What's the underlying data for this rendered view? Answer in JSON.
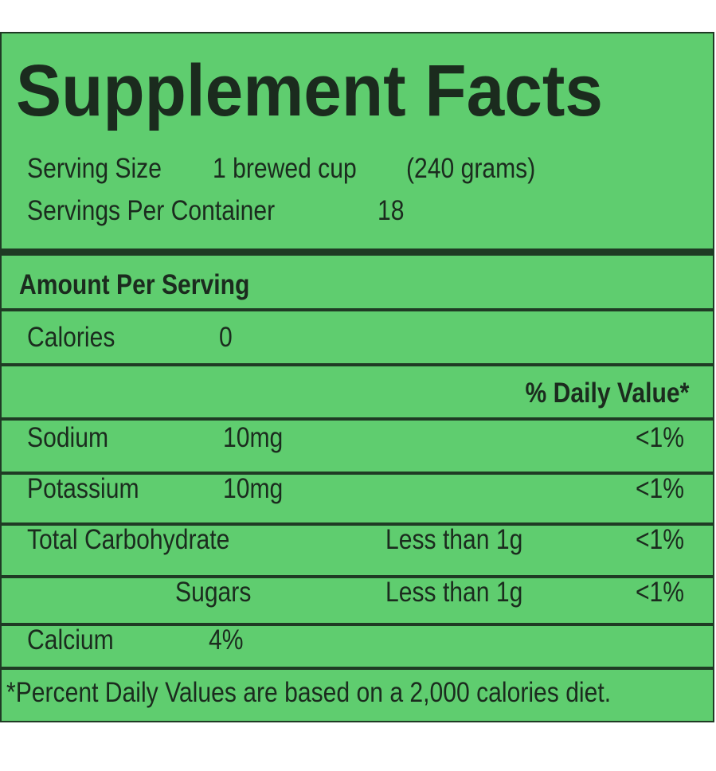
{
  "title": "Supplement Facts",
  "serving": {
    "size_label": "Serving Size",
    "size": "1 brewed cup",
    "grams": "(240 grams)",
    "per_container_label": "Servings Per Container",
    "per_container": "18"
  },
  "amount_header": "Amount Per Serving",
  "calories": {
    "label": "Calories",
    "value": "0"
  },
  "daily_value_header": "% Daily Value*",
  "rows": [
    {
      "name": "Sodium",
      "amount": "10mg",
      "dv": "<1%"
    },
    {
      "name": "Potassium",
      "amount": "10mg",
      "dv": "<1%"
    },
    {
      "name": "Total Carbohydrate",
      "amount": "Less than 1g",
      "dv": "<1%"
    },
    {
      "name": "Sugars",
      "amount": "Less than 1g",
      "dv": "<1%"
    },
    {
      "name": "Calcium",
      "amount": "4%"
    }
  ],
  "footnote": "*Percent Daily Values  are based on a 2,000 calories diet."
}
